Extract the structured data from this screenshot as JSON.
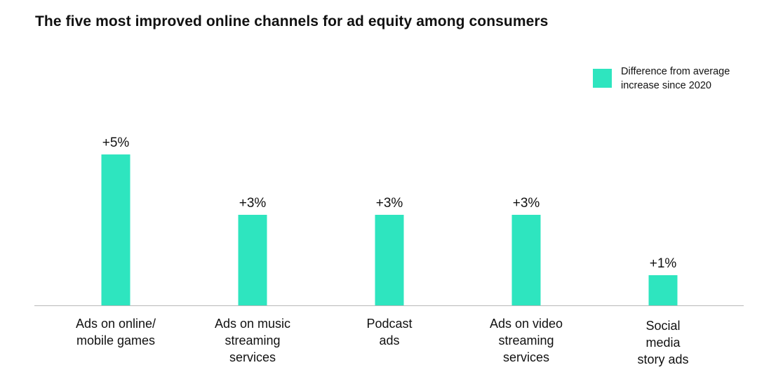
{
  "title": "The five most improved online channels for ad equity among consumers",
  "legend": {
    "label": "Difference from average increase since 2020",
    "color": "#2ee5bf"
  },
  "chart_data": {
    "type": "bar",
    "title": "The five most improved online channels for ad equity among consumers",
    "xlabel": "",
    "ylabel": "",
    "ylim": [
      0,
      5
    ],
    "grid": false,
    "legend_position": "top-right",
    "bar_color": "#2ee5bf",
    "categories": [
      [
        "Ads on online/",
        "mobile games"
      ],
      [
        "Ads on music",
        "streaming",
        "services"
      ],
      [
        "Podcast",
        "ads"
      ],
      [
        "Ads on video",
        "streaming",
        "services"
      ],
      [
        "Social",
        "media",
        "story ads"
      ]
    ],
    "series": [
      {
        "name": "Difference from average increase since 2020",
        "values": [
          5,
          3,
          3,
          3,
          1
        ],
        "labels": [
          "+5%",
          "+3%",
          "+3%",
          "+3%",
          "+1%"
        ]
      }
    ]
  }
}
